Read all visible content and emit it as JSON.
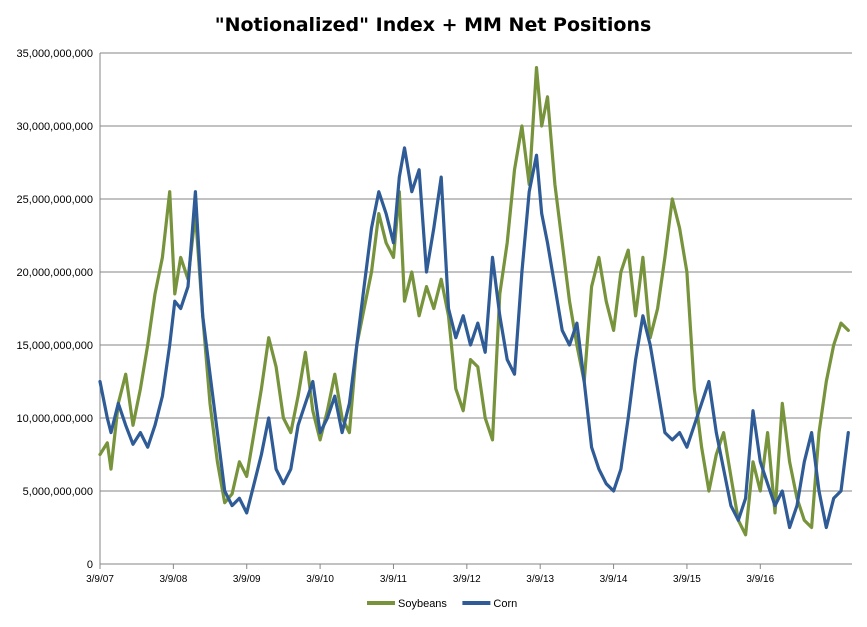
{
  "chart_data": {
    "type": "line",
    "title": "\"Notionalized\" Index + MM Net Positions",
    "xlabel": "",
    "ylabel": "",
    "ylim": [
      0,
      35000000000
    ],
    "yticks": [
      0,
      5000000000,
      10000000000,
      15000000000,
      20000000000,
      25000000000,
      30000000000,
      35000000000
    ],
    "ytick_labels": [
      "0",
      "5,000,000,000",
      "10,000,000,000",
      "15,000,000,000",
      "20,000,000,000",
      "25,000,000,000",
      "30,000,000,000",
      "35,000,000,000"
    ],
    "xlim": [
      2007.0,
      2017.25
    ],
    "x_tick_labels": [
      {
        "x": 2007.0,
        "label": "3/9/07"
      },
      {
        "x": 2008.0,
        "label": "3/9/08"
      },
      {
        "x": 2009.0,
        "label": "3/9/09"
      },
      {
        "x": 2010.0,
        "label": "3/9/10"
      },
      {
        "x": 2011.0,
        "label": "3/9/11"
      },
      {
        "x": 2012.0,
        "label": "3/9/12"
      },
      {
        "x": 2013.0,
        "label": "3/9/13"
      },
      {
        "x": 2014.0,
        "label": "3/9/14"
      },
      {
        "x": 2015.0,
        "label": "3/9/15"
      },
      {
        "x": 2016.0,
        "label": "3/9/16"
      }
    ],
    "grid": "horizontal",
    "legend_position": "bottom",
    "series": [
      {
        "name": "Soybeans",
        "color": "#77933c",
        "points": [
          [
            2007.0,
            7500000000
          ],
          [
            2007.1,
            8300000000
          ],
          [
            2007.15,
            6500000000
          ],
          [
            2007.25,
            11000000000
          ],
          [
            2007.35,
            13000000000
          ],
          [
            2007.45,
            9500000000
          ],
          [
            2007.55,
            12000000000
          ],
          [
            2007.65,
            15000000000
          ],
          [
            2007.75,
            18500000000
          ],
          [
            2007.85,
            21000000000
          ],
          [
            2007.95,
            25500000000
          ],
          [
            2008.02,
            18500000000
          ],
          [
            2008.1,
            21000000000
          ],
          [
            2008.2,
            19500000000
          ],
          [
            2008.3,
            24000000000
          ],
          [
            2008.4,
            17000000000
          ],
          [
            2008.5,
            11000000000
          ],
          [
            2008.6,
            7000000000
          ],
          [
            2008.7,
            4200000000
          ],
          [
            2008.8,
            4800000000
          ],
          [
            2008.9,
            7000000000
          ],
          [
            2009.0,
            6000000000
          ],
          [
            2009.1,
            9000000000
          ],
          [
            2009.2,
            12000000000
          ],
          [
            2009.3,
            15500000000
          ],
          [
            2009.4,
            13500000000
          ],
          [
            2009.5,
            10000000000
          ],
          [
            2009.6,
            9000000000
          ],
          [
            2009.7,
            11500000000
          ],
          [
            2009.8,
            14500000000
          ],
          [
            2009.9,
            10500000000
          ],
          [
            2010.0,
            8500000000
          ],
          [
            2010.1,
            10500000000
          ],
          [
            2010.2,
            13000000000
          ],
          [
            2010.3,
            10000000000
          ],
          [
            2010.4,
            9000000000
          ],
          [
            2010.5,
            15000000000
          ],
          [
            2010.6,
            17500000000
          ],
          [
            2010.7,
            20000000000
          ],
          [
            2010.8,
            24000000000
          ],
          [
            2010.9,
            22000000000
          ],
          [
            2011.0,
            21000000000
          ],
          [
            2011.08,
            25500000000
          ],
          [
            2011.15,
            18000000000
          ],
          [
            2011.25,
            20000000000
          ],
          [
            2011.35,
            17000000000
          ],
          [
            2011.45,
            19000000000
          ],
          [
            2011.55,
            17500000000
          ],
          [
            2011.65,
            19500000000
          ],
          [
            2011.75,
            17000000000
          ],
          [
            2011.85,
            12000000000
          ],
          [
            2011.95,
            10500000000
          ],
          [
            2012.05,
            14000000000
          ],
          [
            2012.15,
            13500000000
          ],
          [
            2012.25,
            10000000000
          ],
          [
            2012.35,
            8500000000
          ],
          [
            2012.45,
            18500000000
          ],
          [
            2012.55,
            22000000000
          ],
          [
            2012.65,
            27000000000
          ],
          [
            2012.75,
            30000000000
          ],
          [
            2012.85,
            26000000000
          ],
          [
            2012.95,
            34000000000
          ],
          [
            2013.02,
            30000000000
          ],
          [
            2013.1,
            32000000000
          ],
          [
            2013.2,
            26000000000
          ],
          [
            2013.3,
            22000000000
          ],
          [
            2013.4,
            18000000000
          ],
          [
            2013.5,
            15000000000
          ],
          [
            2013.6,
            12500000000
          ],
          [
            2013.7,
            19000000000
          ],
          [
            2013.8,
            21000000000
          ],
          [
            2013.9,
            18000000000
          ],
          [
            2014.0,
            16000000000
          ],
          [
            2014.1,
            20000000000
          ],
          [
            2014.2,
            21500000000
          ],
          [
            2014.3,
            17000000000
          ],
          [
            2014.4,
            21000000000
          ],
          [
            2014.5,
            15500000000
          ],
          [
            2014.6,
            17500000000
          ],
          [
            2014.7,
            21000000000
          ],
          [
            2014.8,
            25000000000
          ],
          [
            2014.9,
            23000000000
          ],
          [
            2015.0,
            20000000000
          ],
          [
            2015.1,
            12000000000
          ],
          [
            2015.2,
            8000000000
          ],
          [
            2015.3,
            5000000000
          ],
          [
            2015.4,
            7500000000
          ],
          [
            2015.5,
            9000000000
          ],
          [
            2015.6,
            6000000000
          ],
          [
            2015.7,
            3000000000
          ],
          [
            2015.8,
            2000000000
          ],
          [
            2015.9,
            7000000000
          ],
          [
            2016.0,
            5000000000
          ],
          [
            2016.1,
            9000000000
          ],
          [
            2016.2,
            3500000000
          ],
          [
            2016.3,
            11000000000
          ],
          [
            2016.4,
            7000000000
          ],
          [
            2016.5,
            4500000000
          ],
          [
            2016.6,
            3000000000
          ],
          [
            2016.7,
            2500000000
          ],
          [
            2016.8,
            9000000000
          ],
          [
            2016.9,
            12500000000
          ],
          [
            2017.0,
            15000000000
          ],
          [
            2017.1,
            16500000000
          ],
          [
            2017.2,
            16000000000
          ]
        ]
      },
      {
        "name": "Corn",
        "color": "#2f5b96",
        "points": [
          [
            2007.0,
            12500000000
          ],
          [
            2007.1,
            10000000000
          ],
          [
            2007.15,
            9000000000
          ],
          [
            2007.25,
            11000000000
          ],
          [
            2007.35,
            9500000000
          ],
          [
            2007.45,
            8200000000
          ],
          [
            2007.55,
            9000000000
          ],
          [
            2007.65,
            8000000000
          ],
          [
            2007.75,
            9500000000
          ],
          [
            2007.85,
            11500000000
          ],
          [
            2007.95,
            15000000000
          ],
          [
            2008.02,
            18000000000
          ],
          [
            2008.1,
            17500000000
          ],
          [
            2008.2,
            19000000000
          ],
          [
            2008.3,
            25500000000
          ],
          [
            2008.4,
            17000000000
          ],
          [
            2008.5,
            13000000000
          ],
          [
            2008.6,
            9000000000
          ],
          [
            2008.7,
            5000000000
          ],
          [
            2008.8,
            4000000000
          ],
          [
            2008.9,
            4500000000
          ],
          [
            2009.0,
            3500000000
          ],
          [
            2009.1,
            5500000000
          ],
          [
            2009.2,
            7500000000
          ],
          [
            2009.3,
            10000000000
          ],
          [
            2009.4,
            6500000000
          ],
          [
            2009.5,
            5500000000
          ],
          [
            2009.6,
            6500000000
          ],
          [
            2009.7,
            9500000000
          ],
          [
            2009.8,
            11000000000
          ],
          [
            2009.9,
            12500000000
          ],
          [
            2010.0,
            9000000000
          ],
          [
            2010.1,
            10000000000
          ],
          [
            2010.2,
            11500000000
          ],
          [
            2010.3,
            9000000000
          ],
          [
            2010.4,
            11000000000
          ],
          [
            2010.5,
            15000000000
          ],
          [
            2010.6,
            19000000000
          ],
          [
            2010.7,
            23000000000
          ],
          [
            2010.8,
            25500000000
          ],
          [
            2010.9,
            24000000000
          ],
          [
            2011.0,
            22000000000
          ],
          [
            2011.08,
            26500000000
          ],
          [
            2011.15,
            28500000000
          ],
          [
            2011.25,
            25500000000
          ],
          [
            2011.35,
            27000000000
          ],
          [
            2011.45,
            20000000000
          ],
          [
            2011.55,
            23000000000
          ],
          [
            2011.65,
            26500000000
          ],
          [
            2011.75,
            17500000000
          ],
          [
            2011.85,
            15500000000
          ],
          [
            2011.95,
            17000000000
          ],
          [
            2012.05,
            15000000000
          ],
          [
            2012.15,
            16500000000
          ],
          [
            2012.25,
            14500000000
          ],
          [
            2012.35,
            21000000000
          ],
          [
            2012.45,
            17000000000
          ],
          [
            2012.55,
            14000000000
          ],
          [
            2012.65,
            13000000000
          ],
          [
            2012.75,
            20000000000
          ],
          [
            2012.85,
            25500000000
          ],
          [
            2012.95,
            28000000000
          ],
          [
            2013.02,
            24000000000
          ],
          [
            2013.1,
            22000000000
          ],
          [
            2013.2,
            19000000000
          ],
          [
            2013.3,
            16000000000
          ],
          [
            2013.4,
            15000000000
          ],
          [
            2013.5,
            16500000000
          ],
          [
            2013.6,
            12500000000
          ],
          [
            2013.7,
            8000000000
          ],
          [
            2013.8,
            6500000000
          ],
          [
            2013.9,
            5500000000
          ],
          [
            2014.0,
            5000000000
          ],
          [
            2014.1,
            6500000000
          ],
          [
            2014.2,
            10000000000
          ],
          [
            2014.3,
            14000000000
          ],
          [
            2014.4,
            17000000000
          ],
          [
            2014.5,
            15000000000
          ],
          [
            2014.6,
            12000000000
          ],
          [
            2014.7,
            9000000000
          ],
          [
            2014.8,
            8500000000
          ],
          [
            2014.9,
            9000000000
          ],
          [
            2015.0,
            8000000000
          ],
          [
            2015.1,
            9500000000
          ],
          [
            2015.2,
            11000000000
          ],
          [
            2015.3,
            12500000000
          ],
          [
            2015.4,
            9000000000
          ],
          [
            2015.5,
            6500000000
          ],
          [
            2015.6,
            4000000000
          ],
          [
            2015.7,
            3000000000
          ],
          [
            2015.8,
            4500000000
          ],
          [
            2015.9,
            10500000000
          ],
          [
            2016.0,
            7000000000
          ],
          [
            2016.1,
            5500000000
          ],
          [
            2016.2,
            4000000000
          ],
          [
            2016.3,
            5000000000
          ],
          [
            2016.4,
            2500000000
          ],
          [
            2016.5,
            4000000000
          ],
          [
            2016.6,
            7000000000
          ],
          [
            2016.7,
            9000000000
          ],
          [
            2016.8,
            5000000000
          ],
          [
            2016.9,
            2500000000
          ],
          [
            2017.0,
            4500000000
          ],
          [
            2017.1,
            5000000000
          ],
          [
            2017.2,
            9000000000
          ]
        ]
      }
    ]
  }
}
